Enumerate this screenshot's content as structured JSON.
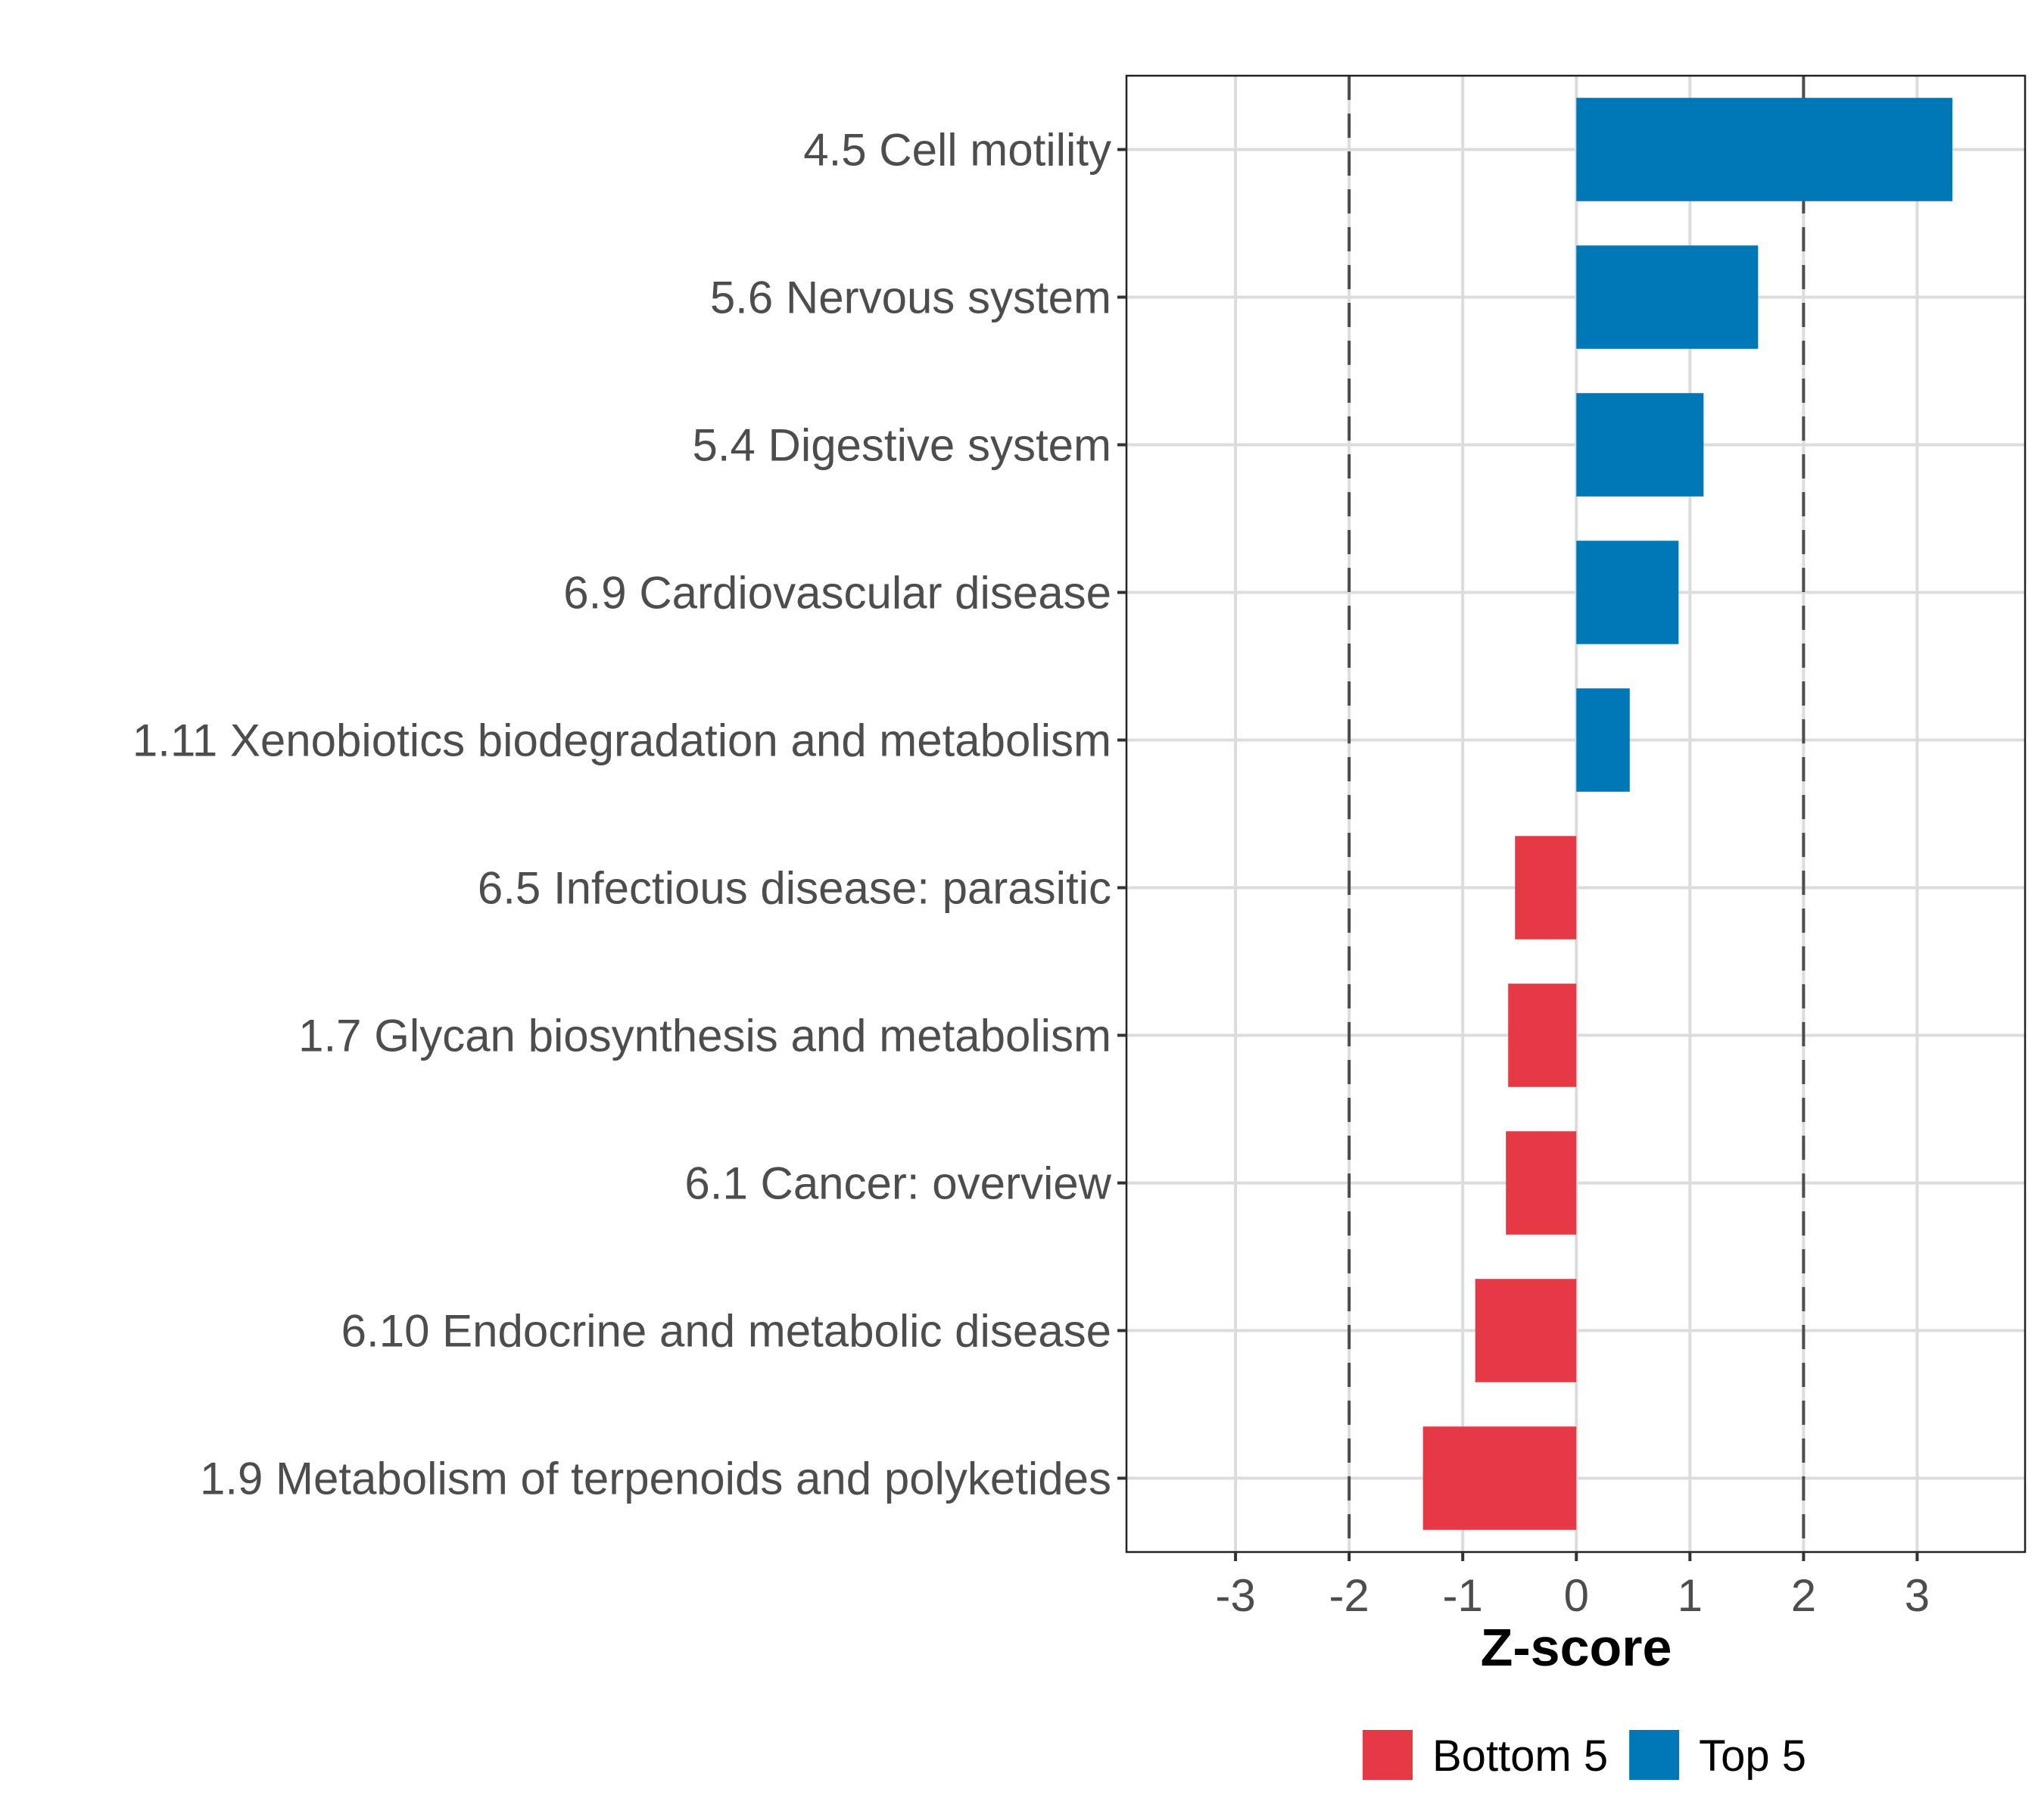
{
  "chart_data": {
    "type": "bar",
    "orientation": "horizontal",
    "title": "",
    "xlabel": "Z-score",
    "ylabel": "",
    "xlim": [
      -3.96,
      3.95
    ],
    "xticks": [
      -3,
      -2,
      -1,
      0,
      1,
      2,
      3
    ],
    "xtick_labels": [
      "-3",
      "-2",
      "-1",
      "0",
      "1",
      "2",
      "3"
    ],
    "grid": true,
    "reference_lines": [
      {
        "x": -2,
        "style": "dashed",
        "color": "#4d4d4d"
      },
      {
        "x": 2,
        "style": "dashed",
        "color": "#4d4d4d"
      }
    ],
    "categories": [
      "4.5 Cell motility",
      "5.6 Nervous system",
      "5.4 Digestive system",
      "6.9 Cardiovascular disease",
      "1.11 Xenobiotics biodegradation and metabolism",
      "6.5 Infectious disease: parasitic",
      "1.7 Glycan biosynthesis and metabolism",
      "6.1 Cancer: overview",
      "6.10 Endocrine and metabolic disease",
      "1.9 Metabolism of terpenoids and polyketides"
    ],
    "values": [
      3.31,
      1.6,
      1.12,
      0.9,
      0.47,
      -0.54,
      -0.6,
      -0.62,
      -0.89,
      -1.35
    ],
    "groups": [
      "Top 5",
      "Top 5",
      "Top 5",
      "Top 5",
      "Top 5",
      "Bottom 5",
      "Bottom 5",
      "Bottom 5",
      "Bottom 5",
      "Bottom 5"
    ],
    "legend": {
      "position": "bottom",
      "entries": [
        {
          "label": "Bottom 5",
          "color": "#E63946"
        },
        {
          "label": "Top 5",
          "color": "#0077B6"
        }
      ]
    }
  }
}
